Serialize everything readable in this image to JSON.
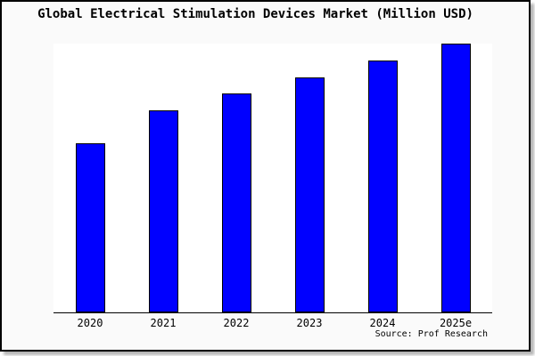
{
  "chart_data": {
    "type": "bar",
    "title": "Global Electrical Stimulation Devices Market (Million USD)",
    "categories": [
      "2020",
      "2021",
      "2022",
      "2023",
      "2024",
      "2025e"
    ],
    "values": [
      62.7,
      74.9,
      81.2,
      87.1,
      93.4,
      99.7
    ],
    "xlabel": "",
    "ylabel": "",
    "ylim": [
      0,
      100
    ],
    "grid": false,
    "legend": false,
    "y_axis_tick_labels_visible": false,
    "value_scale_note": "no y-axis tick labels shown in image; values estimated as percent of plot height",
    "bar_color": "#0000ff",
    "bar_border_color": "#000000"
  },
  "caption": {
    "source": "Source: Prof Research"
  },
  "colors": {
    "figure_background": "#fafafa",
    "plot_background": "#ffffff",
    "frame_border": "#000000",
    "axis": "#000000",
    "text": "#000000"
  }
}
